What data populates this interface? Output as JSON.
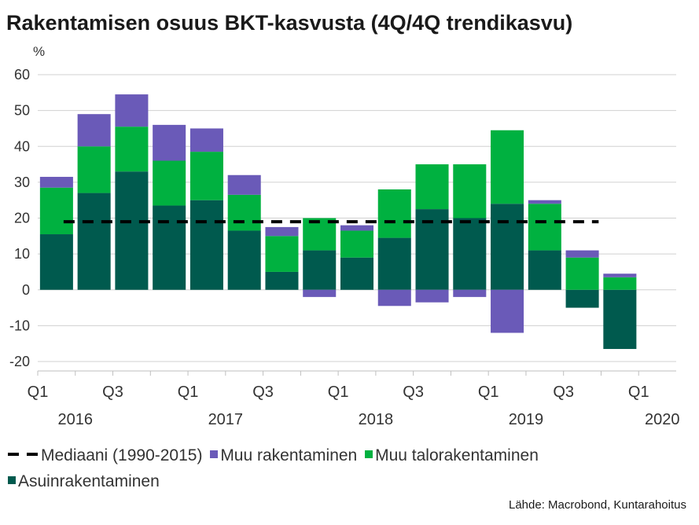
{
  "title": "Rakentamisen osuus BKT-kasvusta (4Q/4Q trendikasvu)",
  "source": "Lähde: Macrobond, Kuntarahoitus",
  "colors": {
    "asuin": "#005a4e",
    "talo": "#00b140",
    "muu": "#6a5ab8",
    "median": "#000000",
    "grid": "#d0d0d0"
  },
  "chart_data": {
    "type": "bar",
    "stacked": true,
    "unit_label": "%",
    "ylim": [
      -20,
      60
    ],
    "yticks": [
      -20,
      -10,
      0,
      10,
      20,
      30,
      40,
      50,
      60
    ],
    "grid": true,
    "legend_position": "bottom",
    "categories": [
      "2016Q1",
      "2016Q2",
      "2016Q3",
      "2016Q4",
      "2017Q1",
      "2017Q2",
      "2017Q3",
      "2017Q4",
      "2018Q1",
      "2018Q2",
      "2018Q3",
      "2018Q4",
      "2019Q1",
      "2019Q2",
      "2019Q3",
      "2019Q4"
    ],
    "x_tick_labels": [
      {
        "quarter": "Q1",
        "year": "2016"
      },
      {
        "quarter": "Q3",
        "year": ""
      },
      {
        "quarter": "Q1",
        "year": "2017"
      },
      {
        "quarter": "Q3",
        "year": ""
      },
      {
        "quarter": "Q1",
        "year": "2018"
      },
      {
        "quarter": "Q3",
        "year": ""
      },
      {
        "quarter": "Q1",
        "year": "2019"
      },
      {
        "quarter": "Q3",
        "year": ""
      },
      {
        "quarter": "Q1",
        "year": "2020"
      }
    ],
    "series": [
      {
        "name": "Asuinrakentaminen",
        "color": "#005a4e",
        "values": [
          15.5,
          27,
          33,
          23.5,
          25,
          16.5,
          5,
          11,
          9,
          14.5,
          22.5,
          20,
          24,
          11,
          -5,
          -16.5
        ]
      },
      {
        "name": "Muu talorakentaminen",
        "color": "#00b140",
        "values": [
          13,
          13,
          12.5,
          12.5,
          13.5,
          10,
          10,
          9,
          7.5,
          13.5,
          12.5,
          15,
          20.5,
          13,
          9,
          3.5
        ]
      },
      {
        "name": "Muu rakentaminen",
        "color": "#6a5ab8",
        "values": [
          3,
          9,
          9,
          10,
          6.5,
          5.5,
          2.5,
          -2,
          1.5,
          -4.5,
          -3.5,
          -2,
          -12,
          1,
          2,
          1
        ]
      }
    ],
    "median": {
      "name": "Mediaani (1990-2015)",
      "value": 19
    }
  },
  "legend": [
    {
      "label": "Mediaani (1990-2015)",
      "kind": "dash",
      "color": "#000000"
    },
    {
      "label": "Muu rakentaminen",
      "kind": "square",
      "color": "#6a5ab8"
    },
    {
      "label": "Muu talorakentaminen",
      "kind": "square",
      "color": "#00b140"
    },
    {
      "label": "Asuinrakentaminen",
      "kind": "square",
      "color": "#005a4e"
    }
  ]
}
